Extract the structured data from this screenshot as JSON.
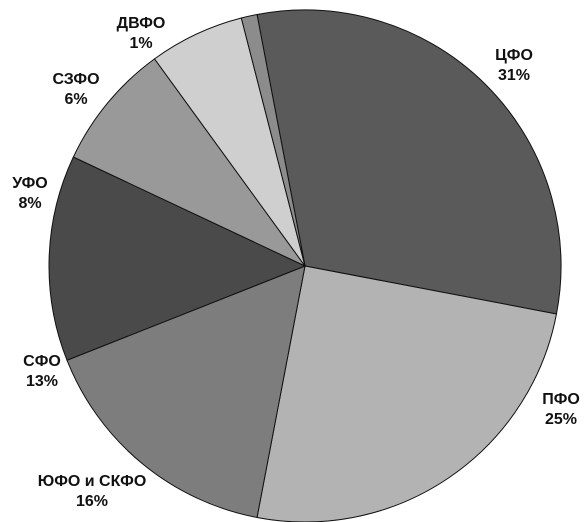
{
  "chart_data": {
    "type": "pie",
    "title": "",
    "legend": "none",
    "categories": [
      "ЦФО",
      "ПФО",
      "ЮФО и СКФО",
      "СФО",
      "УФО",
      "СЗФО",
      "ДВФО"
    ],
    "values": [
      31,
      25,
      16,
      13,
      8,
      6,
      1
    ],
    "labels": [
      "31%",
      "25%",
      "16%",
      "13%",
      "8%",
      "6%",
      "1%"
    ],
    "colors": [
      "#5a5a5a",
      "#b3b3b3",
      "#7d7d7d",
      "#4a4a4a",
      "#999999",
      "#cfcfcf",
      "#8c8c8c"
    ]
  }
}
